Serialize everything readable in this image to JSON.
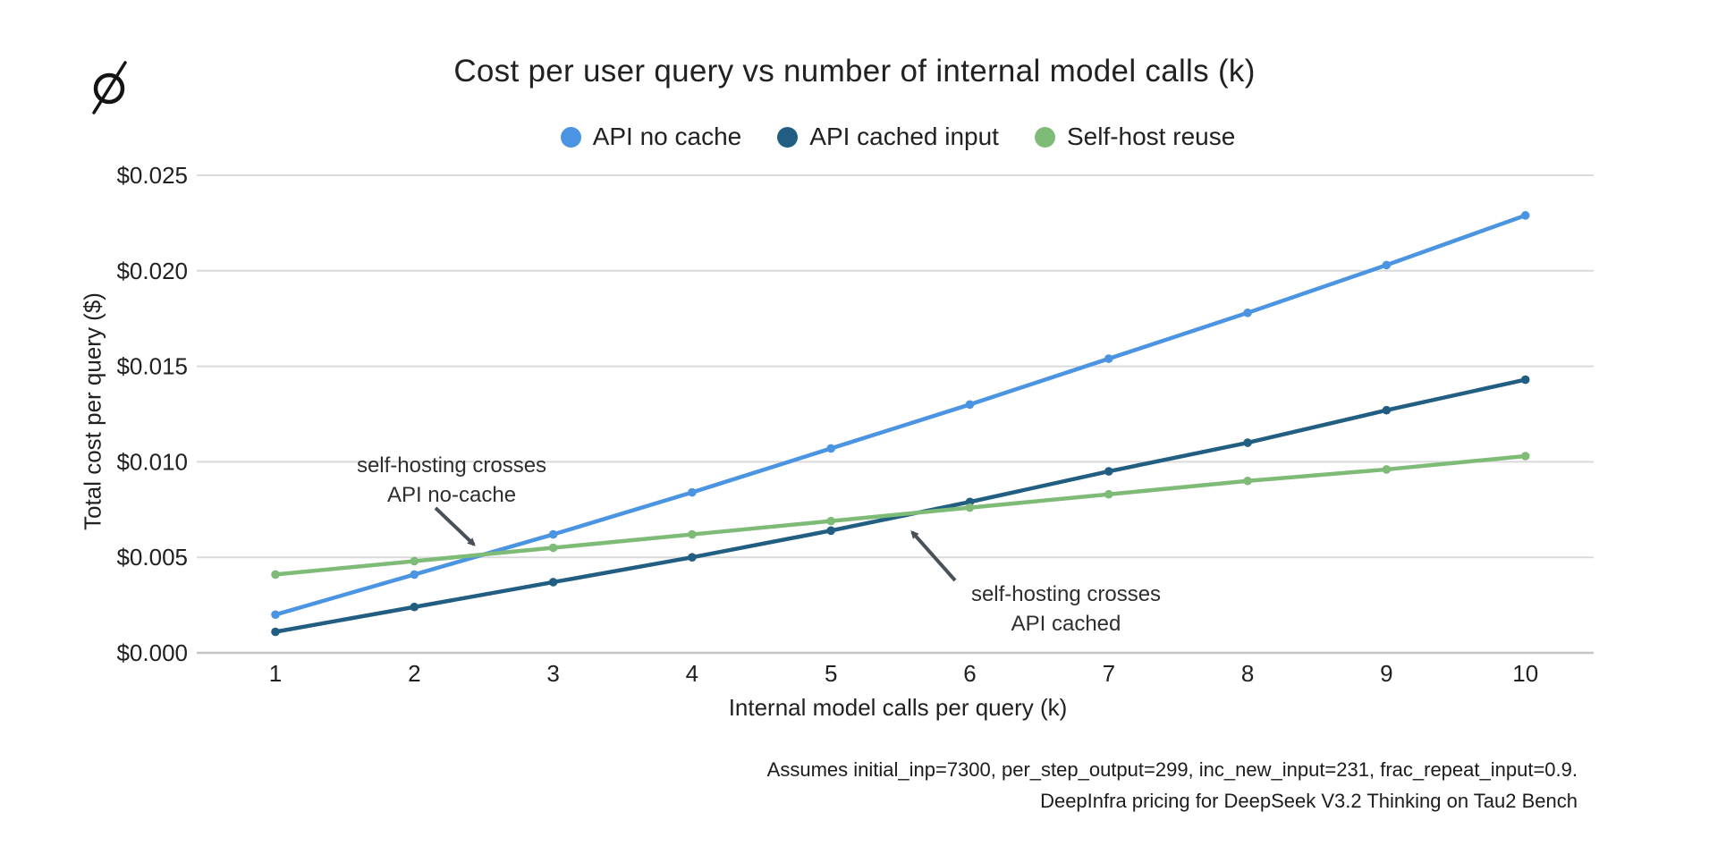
{
  "brand": {
    "logo_symbol": "empty-set"
  },
  "chart_data": {
    "type": "line",
    "title": "Cost per user query vs number of internal model calls (k)",
    "xlabel": "Internal model calls per query (k)",
    "ylabel": "Total cost per query ($)",
    "x": [
      1,
      2,
      3,
      4,
      5,
      6,
      7,
      8,
      9,
      10
    ],
    "x_tick_labels": [
      "1",
      "2",
      "3",
      "4",
      "5",
      "6",
      "7",
      "8",
      "9",
      "10"
    ],
    "y_ticks": [
      0,
      0.005,
      0.01,
      0.015,
      0.02,
      0.025
    ],
    "y_tick_labels": [
      "$0.000",
      "$0.005",
      "$0.010",
      "$0.015",
      "$0.020",
      "$0.025"
    ],
    "ylim": [
      0,
      0.026
    ],
    "grid": true,
    "legend_position": "top-center",
    "series": [
      {
        "name": "API no cache",
        "color": "#4A94E2",
        "values": [
          0.002,
          0.0041,
          0.0062,
          0.0084,
          0.0107,
          0.013,
          0.0154,
          0.0178,
          0.0203,
          0.0229
        ]
      },
      {
        "name": "API cached input",
        "color": "#215E82",
        "values": [
          0.0011,
          0.0024,
          0.0037,
          0.005,
          0.0064,
          0.0079,
          0.0095,
          0.011,
          0.0127,
          0.0143
        ]
      },
      {
        "name": "Self-host reuse",
        "color": "#7EBB77",
        "values": [
          0.0041,
          0.0048,
          0.0055,
          0.0062,
          0.0069,
          0.0076,
          0.0083,
          0.009,
          0.0096,
          0.0103
        ]
      }
    ],
    "annotations": [
      {
        "text_lines": [
          "self-hosting crosses",
          "API no-cache"
        ],
        "arrow_points_at": {
          "k": 2.5,
          "value": 0.0052
        }
      },
      {
        "text_lines": [
          "self-hosting crosses",
          "API cached"
        ],
        "arrow_points_at": {
          "k": 5.6,
          "value": 0.0073
        }
      }
    ],
    "colors": {
      "text": "#212121",
      "grid": "#DADADA",
      "baseline": "#C6C6C6",
      "annotation_arrow": "#49525B"
    }
  },
  "footnote": {
    "line1": "Assumes initial_inp=7300, per_step_output=299, inc_new_input=231, frac_repeat_input=0.9.",
    "line2": "DeepInfra pricing for DeepSeek V3.2 Thinking on Tau2 Bench"
  }
}
